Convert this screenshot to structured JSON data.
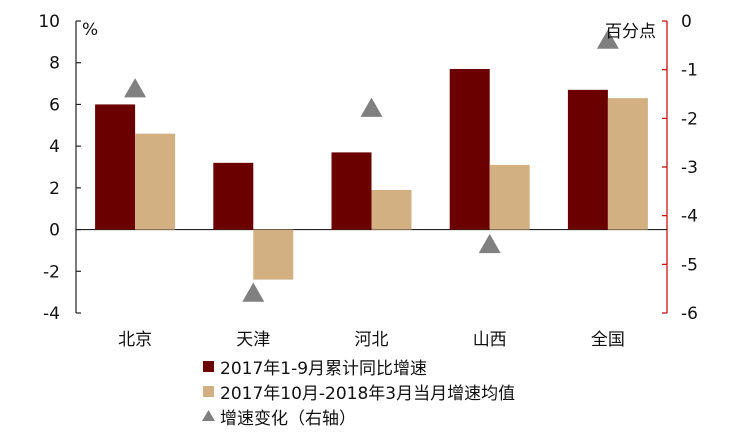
{
  "chart_data": {
    "type": "bar",
    "categories": [
      "北京",
      "天津",
      "河北",
      "山西",
      "全国"
    ],
    "series": [
      {
        "name": "2017年1-9月累计同比增速",
        "axis": "left",
        "kind": "bar",
        "color": "#6b0000",
        "values": [
          6.0,
          3.2,
          3.7,
          7.7,
          6.7
        ]
      },
      {
        "name": "2017年10月-2018年3月当月增速均值",
        "axis": "left",
        "kind": "bar",
        "color": "#d2b082",
        "values": [
          4.6,
          -2.4,
          1.9,
          3.1,
          6.3
        ]
      },
      {
        "name": "增速变化（右轴）",
        "axis": "right",
        "kind": "marker",
        "marker": "triangle",
        "color": "#808080",
        "values": [
          -1.4,
          -5.6,
          -1.8,
          -4.6,
          -0.4
        ]
      }
    ],
    "left_axis": {
      "unit": "%",
      "ylim": [
        -4,
        10
      ],
      "ticks": [
        "-4",
        "-2",
        "0",
        "2",
        "4",
        "6",
        "8",
        "10"
      ]
    },
    "right_axis": {
      "unit": "百分点",
      "ylim": [
        -6,
        0
      ],
      "ticks": [
        "-6",
        "-5",
        "-4",
        "-3",
        "-2",
        "-1",
        "0"
      ],
      "color": "#cc0000"
    },
    "grid": false,
    "legend": {
      "placement": "bottom"
    }
  }
}
